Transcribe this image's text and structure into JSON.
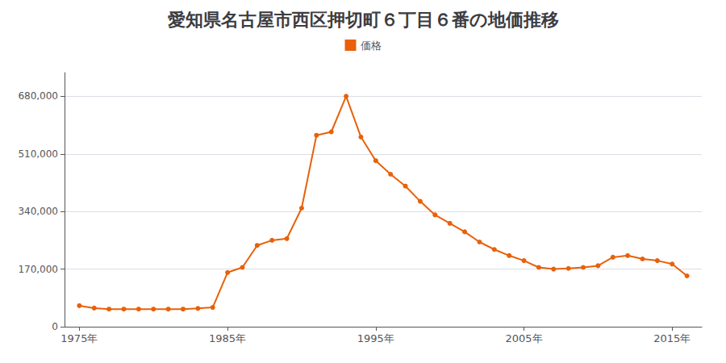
{
  "chart_data": {
    "type": "line",
    "title": "愛知県名古屋市西区押切町６丁目６番の地価推移",
    "x": [
      1975,
      1976,
      1977,
      1978,
      1979,
      1980,
      1981,
      1982,
      1983,
      1984,
      1985,
      1986,
      1987,
      1988,
      1989,
      1990,
      1991,
      1992,
      1993,
      1994,
      1995,
      1996,
      1997,
      1998,
      1999,
      2000,
      2001,
      2002,
      2003,
      2004,
      2005,
      2006,
      2007,
      2008,
      2009,
      2010,
      2011,
      2012,
      2013,
      2014,
      2015,
      2016
    ],
    "series": [
      {
        "name": "価格",
        "color": "#e8610a",
        "marker": "circle",
        "values": [
          62000,
          55000,
          52000,
          52000,
          52000,
          52000,
          52000,
          52000,
          54000,
          57000,
          160000,
          175000,
          240000,
          255000,
          260000,
          350000,
          565000,
          575000,
          680000,
          560000,
          490000,
          450000,
          415000,
          370000,
          330000,
          305000,
          280000,
          250000,
          228000,
          210000,
          195000,
          175000,
          170000,
          172000,
          175000,
          180000,
          205000,
          210000,
          200000,
          195000,
          185000,
          150000
        ]
      }
    ],
    "xlim": [
      1974,
      2017
    ],
    "xticks": [
      {
        "value": 1975,
        "label": "1975年"
      },
      {
        "value": 1985,
        "label": "1985年"
      },
      {
        "value": 1995,
        "label": "1995年"
      },
      {
        "value": 2005,
        "label": "2005年"
      },
      {
        "value": 2015,
        "label": "2015年"
      }
    ],
    "ylim": [
      0,
      750000
    ],
    "yticks": [
      0,
      {
        "value": 170000,
        "label": "170,000"
      },
      {
        "value": 340000,
        "label": "340,000"
      },
      {
        "value": 510000,
        "label": "510,000"
      },
      {
        "value": 680000,
        "label": "680,000"
      }
    ],
    "grid": true,
    "legend": "top"
  }
}
